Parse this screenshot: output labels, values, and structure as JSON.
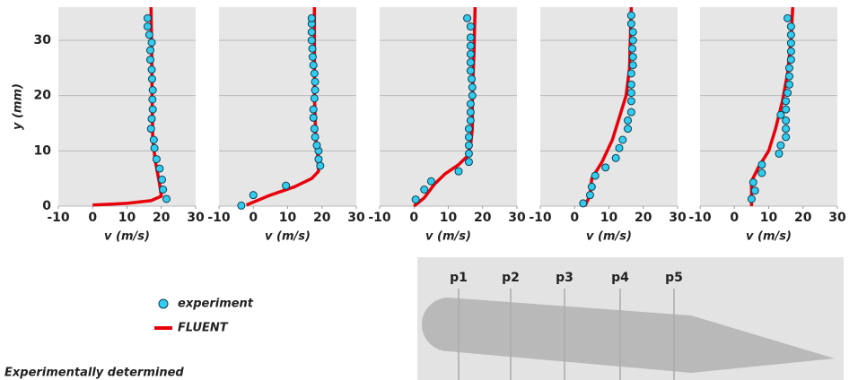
{
  "chart_data": [
    {
      "type": "line",
      "xlabel": "v (m/s)",
      "ylabel": "y (mm)",
      "xlim": [
        -10,
        30
      ],
      "ylim": [
        0,
        36
      ],
      "xticks": [
        -10,
        0,
        10,
        20,
        30
      ],
      "yticks": [
        0,
        10,
        20,
        30
      ],
      "grid": "y",
      "series": [
        {
          "name": "experiment",
          "type": "scatter",
          "color": "#33ccee",
          "x": [
            21.5,
            20.5,
            20.2,
            19.5,
            18.6,
            18,
            17.8,
            17,
            17.2,
            17.5,
            17.4,
            17.5,
            17.3,
            17.2,
            16.8,
            16.8,
            17.2,
            16.5,
            16,
            16
          ],
          "y": [
            1.3,
            3,
            4.8,
            6.8,
            8.5,
            10.5,
            12,
            14,
            15.8,
            17.5,
            19.3,
            21,
            23,
            24.7,
            26.5,
            28.2,
            29.6,
            31,
            32.5,
            34
          ]
        },
        {
          "name": "FLUENT",
          "type": "line",
          "color": "#e8000b",
          "x": [
            0,
            10,
            17,
            20,
            19.5,
            18.3,
            17.5,
            17.3,
            17.2,
            17
          ],
          "y": [
            0.2,
            0.5,
            1,
            1.8,
            4,
            8,
            12,
            20,
            28,
            36
          ]
        }
      ]
    },
    {
      "type": "line",
      "xlabel": "v (m/s)",
      "xlim": [
        -10,
        30
      ],
      "ylim": [
        0,
        36
      ],
      "xticks": [
        -10,
        0,
        10,
        20,
        30
      ],
      "yticks": [
        0,
        10,
        20,
        30
      ],
      "grid": "y",
      "series": [
        {
          "type": "scatter",
          "color": "#33ccee",
          "x": [
            -3.5,
            0,
            9.5,
            19.5,
            19,
            19,
            18.5,
            18,
            17.8,
            17.5,
            17.5,
            17.8,
            18,
            18,
            17.8,
            17.5,
            17.3,
            17.2,
            17,
            17,
            17,
            17
          ],
          "y": [
            0.1,
            2,
            3.7,
            7.3,
            8.5,
            10,
            11,
            12.5,
            14,
            16,
            17.5,
            19.5,
            21,
            22.5,
            24,
            25.5,
            27,
            28.5,
            30,
            31.5,
            33,
            34
          ]
        },
        {
          "type": "line",
          "color": "#e8000b",
          "x": [
            -2,
            5,
            12,
            17,
            19,
            18.8,
            18.2,
            17.8,
            17.8
          ],
          "y": [
            0.2,
            2,
            3.5,
            5,
            6.3,
            9,
            12,
            20,
            36
          ]
        }
      ]
    },
    {
      "type": "line",
      "xlabel": "v (m/s)",
      "xlim": [
        -10,
        30
      ],
      "ylim": [
        0,
        36
      ],
      "xticks": [
        -10,
        0,
        10,
        20,
        30
      ],
      "yticks": [
        0,
        10,
        20,
        30
      ],
      "grid": "y",
      "series": [
        {
          "type": "scatter",
          "color": "#33ccee",
          "x": [
            0.5,
            3,
            5,
            13,
            16,
            16,
            16,
            16,
            16,
            16.5,
            16.5,
            16.5,
            17,
            17,
            16.8,
            16.5,
            16.5,
            16.5,
            16.5,
            16.5,
            16.5,
            15.5
          ],
          "y": [
            1.2,
            3,
            4.5,
            6.3,
            8,
            9.5,
            11,
            12.5,
            14,
            15.5,
            17,
            18.5,
            20,
            21.5,
            23,
            24.5,
            26,
            27.5,
            29,
            30.5,
            32.5,
            34
          ]
        },
        {
          "type": "line",
          "color": "#e8000b",
          "x": [
            0,
            3,
            6,
            9,
            13,
            15.5,
            16.5,
            17,
            17,
            17.5,
            17.8
          ],
          "y": [
            0,
            1.5,
            4,
            5.8,
            7.5,
            9,
            11,
            14,
            20,
            28,
            36
          ]
        }
      ]
    },
    {
      "type": "line",
      "xlabel": "v (m/s)",
      "xlim": [
        -10,
        30
      ],
      "ylim": [
        0,
        36
      ],
      "xticks": [
        -10,
        0,
        10,
        20,
        30
      ],
      "yticks": [
        0,
        10,
        20,
        30
      ],
      "grid": "y",
      "series": [
        {
          "type": "scatter",
          "color": "#33ccee",
          "x": [
            2.5,
            4.5,
            5,
            6,
            9,
            12,
            13,
            14,
            15.5,
            15.5,
            16.5,
            16.5,
            16.5,
            16.5,
            16.5,
            17,
            17,
            16.8,
            17,
            17,
            16.5,
            16.5
          ],
          "y": [
            0.5,
            2,
            3.5,
            5.5,
            7,
            8.7,
            10.5,
            12,
            14,
            15.5,
            17,
            19,
            20.5,
            22,
            24,
            25.5,
            27,
            28.5,
            30,
            31.5,
            33,
            34.5
          ]
        },
        {
          "type": "line",
          "color": "#e8000b",
          "x": [
            3,
            4.5,
            5,
            8,
            11,
            13,
            15,
            16,
            16.5
          ],
          "y": [
            0,
            2,
            5,
            8,
            12,
            16,
            20,
            25,
            36
          ]
        }
      ]
    },
    {
      "type": "line",
      "xlabel": "v (m/s)",
      "xlim": [
        -10,
        30
      ],
      "ylim": [
        0,
        36
      ],
      "xticks": [
        -10,
        0,
        10,
        20,
        30
      ],
      "yticks": [
        0,
        10,
        20,
        30
      ],
      "grid": "y",
      "series": [
        {
          "type": "scatter",
          "color": "#33ccee",
          "x": [
            5,
            6,
            5.5,
            8,
            8,
            13,
            13.5,
            15,
            15,
            15,
            13.5,
            15,
            15,
            15.5,
            16,
            16,
            16,
            16.5,
            16.5,
            16.5,
            16.5,
            16.5,
            15.5
          ],
          "y": [
            1.3,
            2.8,
            4.3,
            6,
            7.5,
            9.5,
            11,
            12.5,
            14,
            15.5,
            16.5,
            17.5,
            19,
            20.5,
            22,
            23.5,
            25,
            26.5,
            28,
            29.5,
            31,
            32.5,
            34
          ]
        },
        {
          "type": "line",
          "color": "#e8000b",
          "x": [
            5,
            5,
            7,
            10,
            12,
            14,
            15.5,
            16.5,
            17
          ],
          "y": [
            0,
            4.5,
            7,
            10,
            14,
            19,
            24,
            30,
            36
          ]
        }
      ]
    }
  ],
  "diagram": {
    "probes": [
      "p1",
      "p2",
      "p3",
      "p4",
      "p5"
    ]
  },
  "caption": "Experimentally determined"
}
